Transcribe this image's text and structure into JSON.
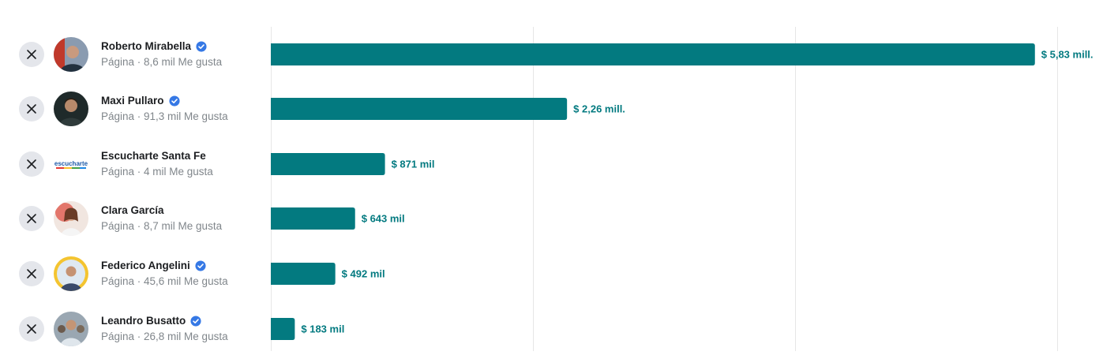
{
  "colors": {
    "bar": "#037a80",
    "label": "#037a80",
    "grid": "#e6e6e6",
    "verified": "#3578e5",
    "remove_bg": "#e4e6eb"
  },
  "pages": [
    {
      "name": "Roberto Mirabella",
      "meta": "Página · 8,6 mil Me gusta",
      "verified": true,
      "avatar": "portrait-gray-bg",
      "remove_icon": "close-icon"
    },
    {
      "name": "Maxi Pullaro",
      "meta": "Página · 91,3 mil Me gusta",
      "verified": true,
      "avatar": "portrait-dark",
      "remove_icon": "close-icon"
    },
    {
      "name": "Escucharte Santa Fe",
      "meta": "Página · 4 mil Me gusta",
      "verified": false,
      "avatar": "escucharte-logo",
      "remove_icon": "close-icon"
    },
    {
      "name": "Clara García",
      "meta": "Página · 8,7 mil Me gusta",
      "verified": false,
      "avatar": "portrait-red-bg",
      "remove_icon": "close-icon"
    },
    {
      "name": "Federico Angelini",
      "meta": "Página · 45,6 mil Me gusta",
      "verified": true,
      "avatar": "portrait-yellow-ring",
      "remove_icon": "close-icon"
    },
    {
      "name": "Leandro Busatto",
      "meta": "Página · 26,8 mil Me gusta",
      "verified": true,
      "avatar": "portrait-crowd",
      "remove_icon": "close-icon"
    }
  ],
  "chart_data": {
    "type": "bar",
    "orientation": "horizontal",
    "categories": [
      "Roberto Mirabella",
      "Maxi Pullaro",
      "Escucharte Santa Fe",
      "Clara García",
      "Federico Angelini",
      "Leandro Busatto"
    ],
    "values": [
      5830000,
      2260000,
      871000,
      643000,
      492000,
      183000
    ],
    "value_labels": [
      "$ 5,83 mill.",
      "$ 2,26 mill.",
      "$ 871 mil",
      "$ 643 mil",
      "$ 492 mil",
      "$ 183 mil"
    ],
    "xlim": [
      0,
      6000000
    ],
    "grid": true,
    "grid_x_values": [
      2000000,
      4000000,
      6000000
    ]
  }
}
